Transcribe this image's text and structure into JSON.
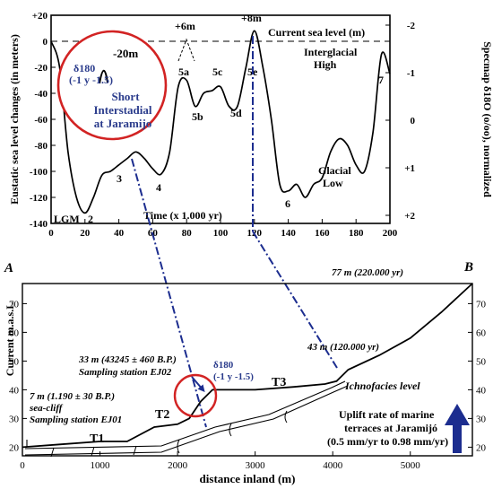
{
  "chart_data": [
    {
      "type": "line",
      "x": [
        0,
        5,
        10,
        15,
        20,
        25,
        30,
        35,
        40,
        45,
        50,
        55,
        60,
        65,
        70,
        75,
        80,
        85,
        90,
        95,
        100,
        105,
        110,
        115,
        120,
        125,
        130,
        135,
        140,
        145,
        150,
        155,
        160,
        165,
        170,
        175,
        180,
        185,
        190,
        195,
        200
      ],
      "y": [
        0,
        -20,
        -85,
        -120,
        -132,
        -120,
        -103,
        -100,
        -95,
        -90,
        -85,
        -90,
        -98,
        -102,
        -85,
        -35,
        -30,
        -50,
        -40,
        -38,
        -35,
        -50,
        -50,
        -20,
        8,
        -20,
        -60,
        -110,
        -115,
        -110,
        -120,
        -110,
        -105,
        -85,
        -75,
        -80,
        -95,
        -100,
        -70,
        -10,
        -25
      ],
      "xlabel": "Time (x 1.000 yr)",
      "ylabel": "Eustatic sea level changes (in meters)",
      "y2label": "Specmap δ18O (o/oo), normalized",
      "xlim": [
        0,
        200
      ],
      "ylim": [
        -140,
        20
      ],
      "xticks": [
        "0",
        "20",
        "40",
        "60",
        "80",
        "100",
        "120",
        "140",
        "160",
        "180",
        "200"
      ],
      "yticks": [
        "-140",
        "-120",
        "-100",
        "-80",
        "-60",
        "-40",
        "-20",
        "0",
        "+20"
      ],
      "y2ticks": [
        "-2",
        "-1",
        "0",
        "+1",
        "+2"
      ],
      "reference_line": {
        "label": "Current sea level (m)",
        "y": 0
      },
      "annotations": {
        "lgm": "LGM",
        "stage2": "2",
        "stage3": "3",
        "stage4": "4",
        "stage5a": "5a",
        "stage5b": "5b",
        "stage5c": "5c",
        "stage5d": "5d",
        "stage5e": "5e",
        "stage6": "6",
        "stage7": "7",
        "plus6": "+6m",
        "plus8": "+8m",
        "interglacial1": "Interglacial",
        "interglacial2": "High",
        "glacial1": "Glacial",
        "glacial2": "Low"
      },
      "inset": {
        "depth": "-20m",
        "d18o": "δ180",
        "range": "(-1 y -1.5)",
        "title1": "Short",
        "title2": "Interstadial",
        "title3": "at Jaramijo"
      }
    },
    {
      "type": "line",
      "panel_letter_left": "A",
      "panel_letter_right": "B",
      "x": [
        0,
        500,
        1000,
        1350,
        1700,
        2000,
        2150,
        2300,
        2450,
        2600,
        3000,
        3500,
        3900,
        4050,
        4200,
        4600,
        5000,
        5400,
        5800
      ],
      "y": [
        20,
        21,
        22,
        22,
        27,
        28,
        30,
        36,
        40,
        40,
        40,
        41,
        42,
        43,
        47,
        52,
        58,
        67,
        77
      ],
      "xlabel": "distance inland (m)",
      "ylabel": "Current m.a.s.L",
      "xlim": [
        0,
        5800
      ],
      "ylim": [
        17,
        77
      ],
      "xticks": [
        "0",
        "1000",
        "2000",
        "3000",
        "4000",
        "5000"
      ],
      "yticks": [
        "20",
        "30",
        "40",
        "50",
        "60",
        "70"
      ],
      "terraces": {
        "t1": "T1",
        "t2": "T2",
        "t3": "T3"
      },
      "annotations": {
        "top": "77 m (220.000 yr)",
        "mid": "43 m (120.000 yr)",
        "station2a": "33 m (43245 ± 460 B.P.)",
        "station2b": "Sampling station EJ02",
        "d18o": "δ180",
        "d18o_range": "(-1 y -1.5)",
        "station1a": "7 m (1.190 ± 30 B.P.)",
        "station1b": "sea-cliff",
        "station1c": "Sampling station EJ01",
        "ichno": "Ichnofacies level",
        "uplift1": "Uplift rate of marine",
        "uplift2": "terraces at Jaramijó",
        "uplift3": "(0.5 mm/yr to 0.98 mm/yr)"
      }
    }
  ]
}
